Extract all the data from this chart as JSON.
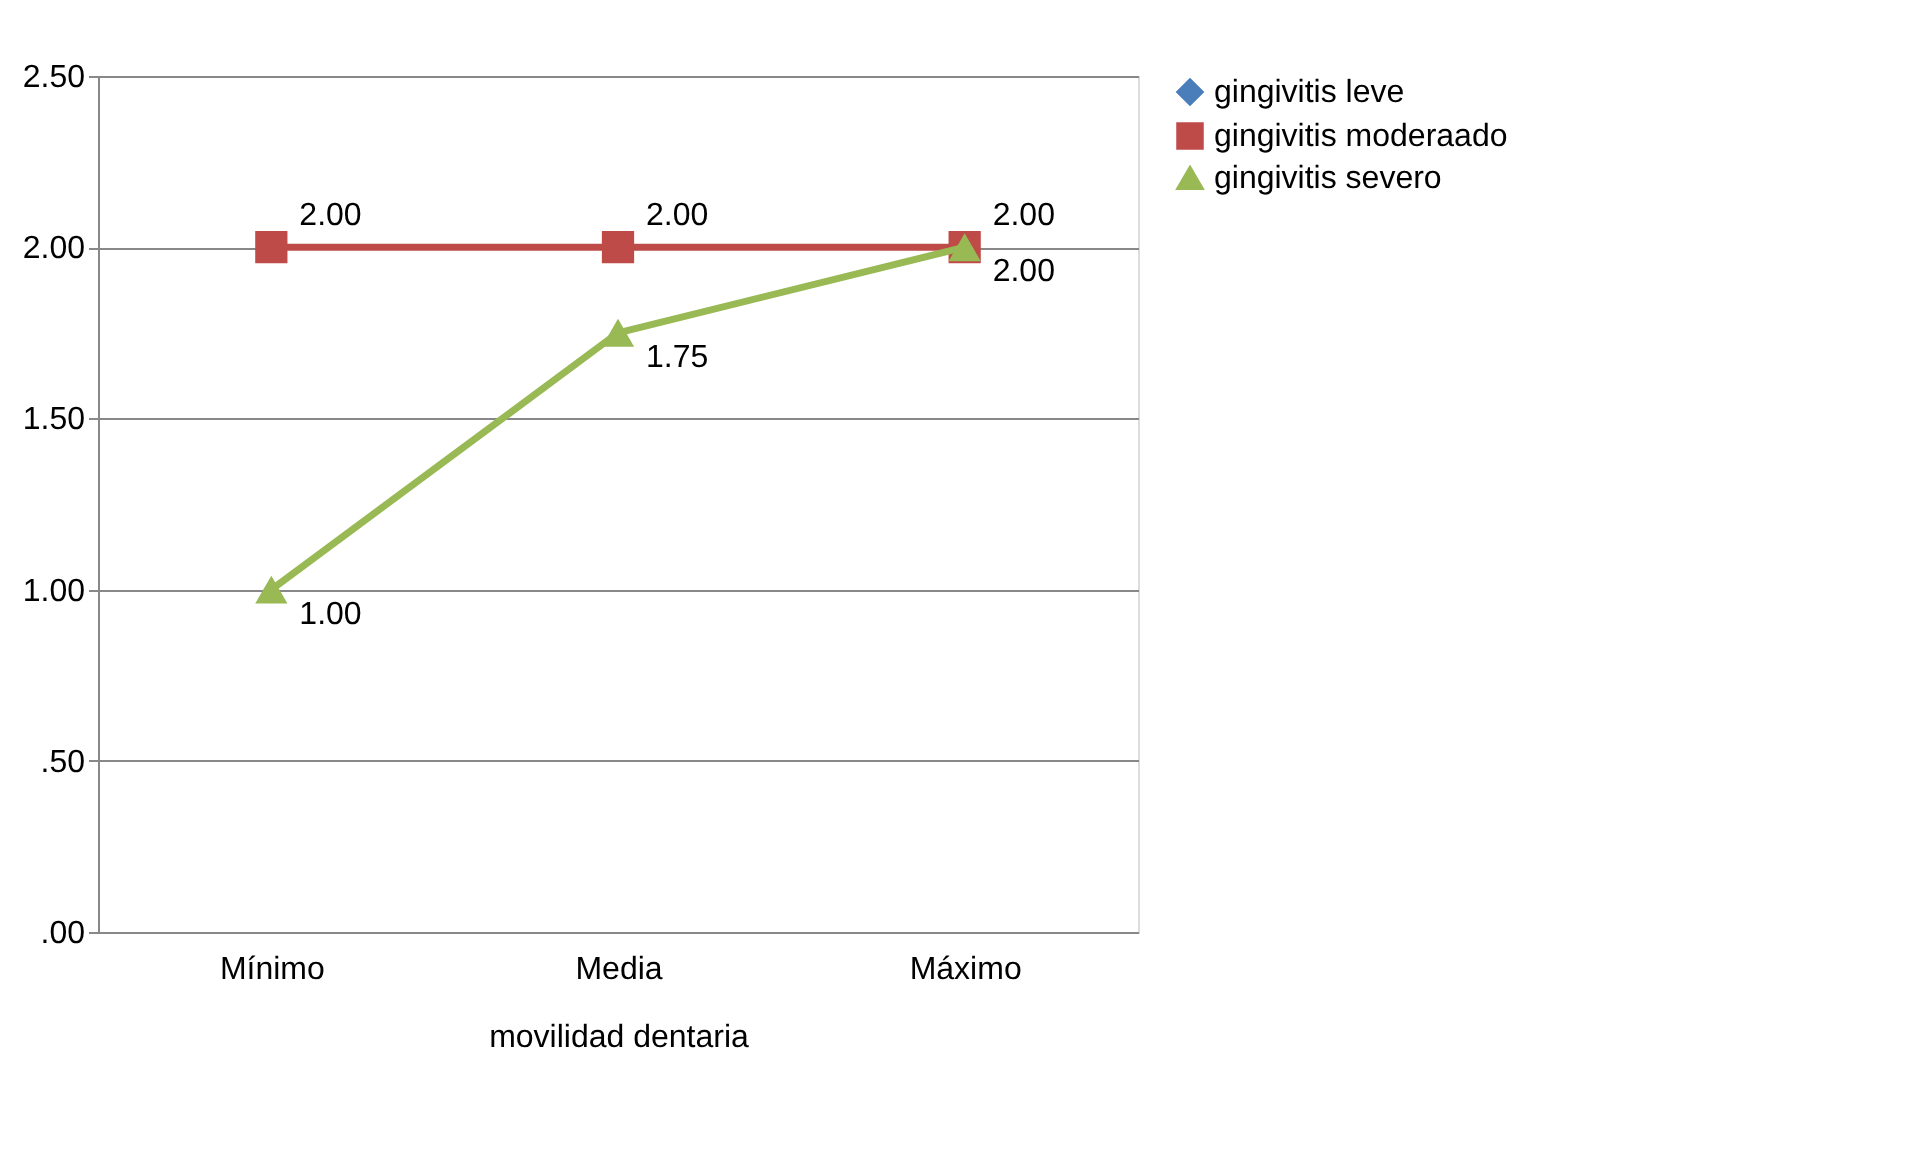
{
  "chart_data": {
    "type": "line",
    "xlabel": "movilidad dentaria",
    "categories": [
      "Mínimo",
      "Media",
      "Máximo"
    ],
    "ylim": [
      0,
      2.5
    ],
    "yticks": [
      {
        "value": 0,
        "label": ".00"
      },
      {
        "value": 0.5,
        "label": ".50"
      },
      {
        "value": 1,
        "label": "1.00"
      },
      {
        "value": 1.5,
        "label": "1.50"
      },
      {
        "value": 2,
        "label": "2.00"
      },
      {
        "value": 2.5,
        "label": "2.50"
      }
    ],
    "grid": "y",
    "legend": "right",
    "line_style": "solid",
    "series": [
      {
        "name": "gingivitis leve",
        "color": "#4a7ebb",
        "marker": "diamond",
        "values": [
          null,
          null,
          null
        ]
      },
      {
        "name": "gingivitis moderaado",
        "color": "#be4b48",
        "marker": "square",
        "values": [
          2,
          2,
          2
        ],
        "value_labels": [
          "2.00",
          "2.00",
          "2.00"
        ]
      },
      {
        "name": "gingivitis severo",
        "color": "#98b954",
        "marker": "triangle",
        "values": [
          1,
          1.75,
          2
        ],
        "value_labels": [
          "1.00",
          "1.75",
          "2.00"
        ]
      }
    ]
  }
}
